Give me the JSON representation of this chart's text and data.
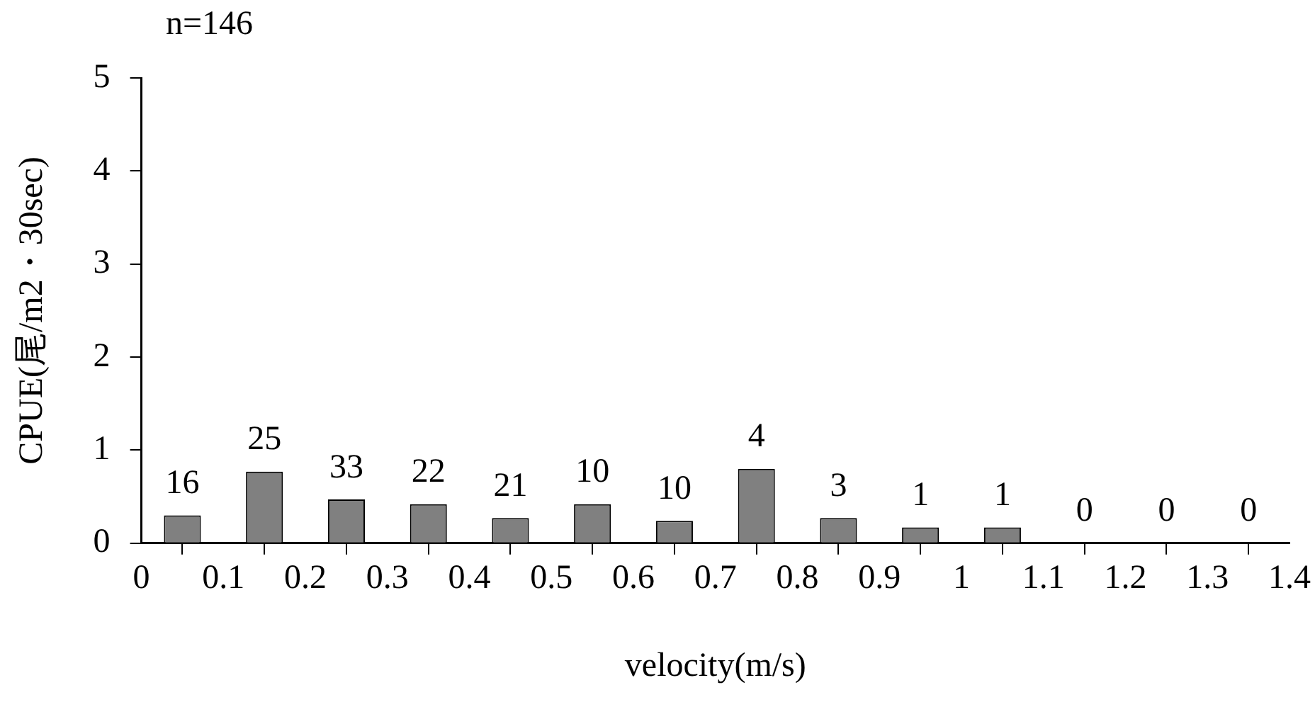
{
  "chart_data": {
    "type": "bar",
    "title": "n=146",
    "xlabel": "velocity(m/s)",
    "ylabel": "CPUE(尾/m2・30sec)",
    "x": [
      0.05,
      0.15,
      0.25,
      0.35,
      0.45,
      0.55,
      0.65,
      0.75,
      0.85,
      0.95,
      1.05,
      1.15,
      1.25,
      1.35
    ],
    "values": [
      0.3,
      0.77,
      0.47,
      0.42,
      0.27,
      0.42,
      0.24,
      0.8,
      0.27,
      0.17,
      0.17,
      0,
      0,
      0
    ],
    "annotations": [
      {
        "text": "16",
        "x": 0.05,
        "y": 0.3
      },
      {
        "text": "25",
        "x": 0.15,
        "y": 0.77
      },
      {
        "text": "33",
        "x": 0.25,
        "y": 0.47
      },
      {
        "text": "22",
        "x": 0.35,
        "y": 0.42
      },
      {
        "text": "21",
        "x": 0.45,
        "y": 0.27
      },
      {
        "text": "10",
        "x": 0.55,
        "y": 0.42
      },
      {
        "text": "10",
        "x": 0.65,
        "y": 0.24
      },
      {
        "text": "4",
        "x": 0.75,
        "y": 0.8
      },
      {
        "text": "3",
        "x": 0.85,
        "y": 0.27
      },
      {
        "text": "1",
        "x": 0.95,
        "y": 0.17
      },
      {
        "text": "1",
        "x": 1.05,
        "y": 0.17
      },
      {
        "text": "0",
        "x": 1.15,
        "y": 0
      },
      {
        "text": "0",
        "x": 1.25,
        "y": 0
      },
      {
        "text": "0",
        "x": 1.35,
        "y": 0
      }
    ],
    "color": "#808080",
    "xlim": [
      0,
      1.4
    ],
    "xticks": [
      0,
      0.1,
      0.2,
      0.3,
      0.4,
      0.5,
      0.6,
      0.7,
      0.8,
      0.9,
      1,
      1.1,
      1.2,
      1.3,
      1.4
    ],
    "ylim": [
      0,
      5
    ],
    "yticks": [
      0,
      1,
      2,
      3,
      4,
      5
    ],
    "grid": false,
    "legend": false
  }
}
